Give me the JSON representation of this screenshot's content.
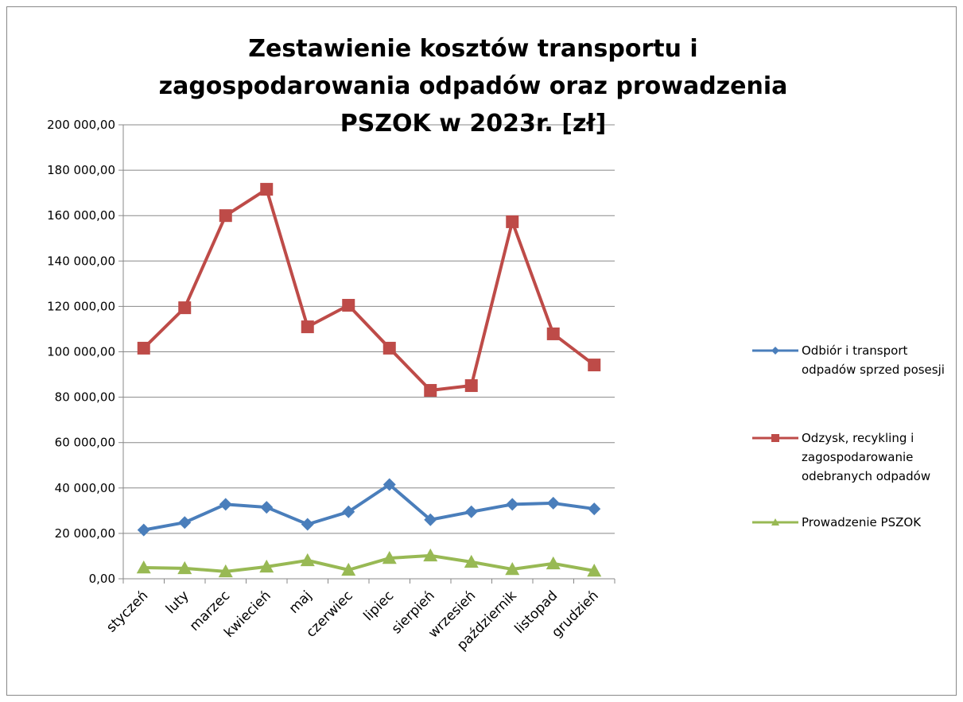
{
  "chart_data": {
    "type": "line",
    "title": "Zestawienie kosztów transportu i zagospodarowania odpadów oraz prowadzenia PSZOK w 2023r. [zł]",
    "categories": [
      "styczeń",
      "luty",
      "marzec",
      "kwiecień",
      "maj",
      "czerwiec",
      "lipiec",
      "sierpień",
      "wrzesień",
      "październik",
      "listopad",
      "grudzień"
    ],
    "series": [
      {
        "name": "Odbiór i transport odpadów sprzed posesji",
        "color": "#4a7ebb",
        "marker": "diamond",
        "values": [
          21500,
          24800,
          32800,
          31500,
          24000,
          29500,
          41500,
          26000,
          29500,
          32800,
          33300,
          30800
        ]
      },
      {
        "name": "Odzysk, recykling i zagospodarowanie odebranych odpadów",
        "color": "#be4b48",
        "marker": "square",
        "values": [
          101600,
          119400,
          160000,
          171600,
          111000,
          120500,
          101600,
          83000,
          85100,
          157300,
          107900,
          94200
        ]
      },
      {
        "name": "Prowadzenie PSZOK",
        "color": "#98b954",
        "marker": "triangle",
        "values": [
          4900,
          4600,
          3200,
          5300,
          8100,
          3900,
          9100,
          10200,
          7400,
          4200,
          6700,
          3500
        ]
      }
    ],
    "ylim": [
      0,
      200000
    ],
    "yticks": [
      {
        "value": 0,
        "label": "0,00"
      },
      {
        "value": 20000,
        "label": "20 000,00"
      },
      {
        "value": 40000,
        "label": "40 000,00"
      },
      {
        "value": 60000,
        "label": "60 000,00"
      },
      {
        "value": 80000,
        "label": "80 000,00"
      },
      {
        "value": 100000,
        "label": "100 000,00"
      },
      {
        "value": 120000,
        "label": "120 000,00"
      },
      {
        "value": 140000,
        "label": "140 000,00"
      },
      {
        "value": 160000,
        "label": "160 000,00"
      },
      {
        "value": 180000,
        "label": "180 000,00"
      },
      {
        "value": 200000,
        "label": "200 000,00"
      }
    ],
    "grid": true,
    "legend": "right"
  }
}
